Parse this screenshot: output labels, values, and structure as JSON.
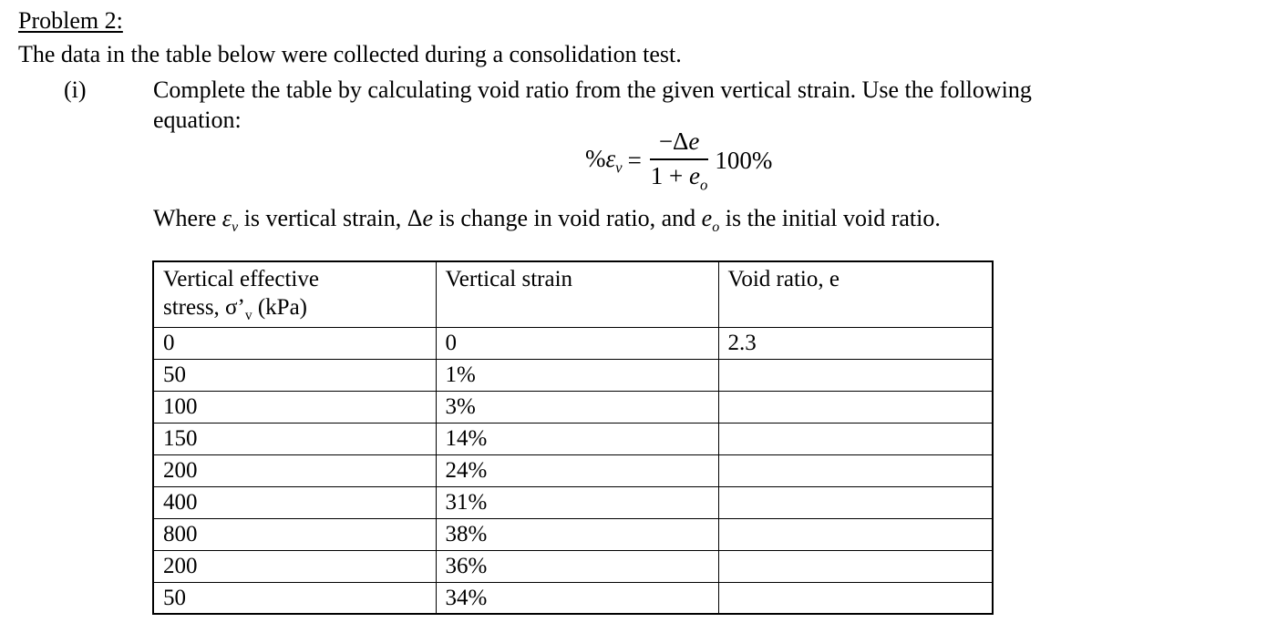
{
  "document": {
    "title": "Problem 2:",
    "intro": "The data in the table below were collected during a consolidation test.",
    "item": {
      "label": "(i)",
      "line1": "Complete the table by calculating void ratio from the given vertical strain. Use the following",
      "line2": "equation:"
    },
    "equation": {
      "percent": "%",
      "epsilon": "ε",
      "epsilon_sub": "v",
      "equals": "=",
      "numerator_pre": "−Δ",
      "numerator_var": "e",
      "denominator_pre": "1 + ",
      "denominator_var": "e",
      "denominator_sub": "o",
      "factor": "100%"
    },
    "where": {
      "t1": "Where ",
      "epsilon": "ε",
      "epsilon_sub": "v",
      "t2": " is vertical strain, ",
      "delta": "Δ",
      "delta_var": "e",
      "t3": " is change in void ratio, and ",
      "e_var": "e",
      "e_sub": "o",
      "t4": " is the initial void ratio."
    }
  },
  "table": {
    "headers": {
      "col1_line1": "Vertical effective",
      "col1_line2_pre": "stress, σ’",
      "col1_line2_sub": "v",
      "col1_line2_post": " (kPa)",
      "col2": "Vertical strain",
      "col3": "Void ratio, e"
    },
    "rows": [
      {
        "stress": "0",
        "strain": "0",
        "void_ratio": "2.3"
      },
      {
        "stress": "50",
        "strain": "1%",
        "void_ratio": ""
      },
      {
        "stress": "100",
        "strain": "3%",
        "void_ratio": ""
      },
      {
        "stress": "150",
        "strain": "14%",
        "void_ratio": ""
      },
      {
        "stress": "200",
        "strain": "24%",
        "void_ratio": ""
      },
      {
        "stress": "400",
        "strain": "31%",
        "void_ratio": ""
      },
      {
        "stress": "800",
        "strain": "38%",
        "void_ratio": ""
      },
      {
        "stress": "200",
        "strain": "36%",
        "void_ratio": ""
      },
      {
        "stress": "50",
        "strain": "34%",
        "void_ratio": ""
      }
    ]
  }
}
